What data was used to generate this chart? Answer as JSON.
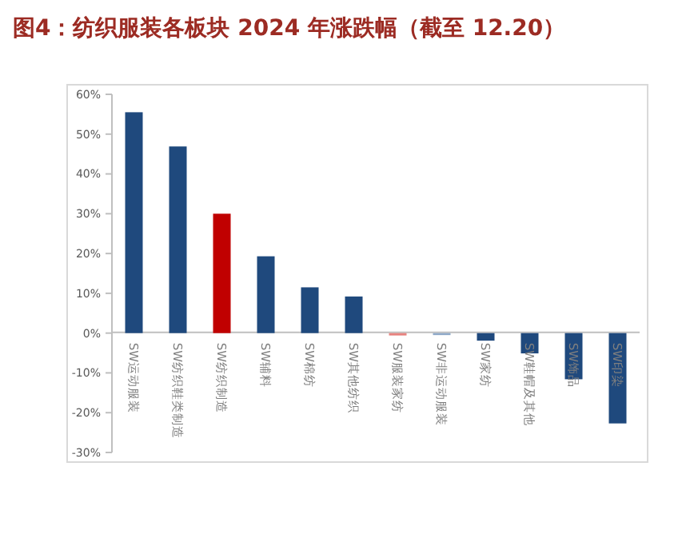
{
  "chart_data": {
    "type": "bar",
    "title": "图4：纺织服装各板块 2024 年涨跌幅（截至 12.20）",
    "categories": [
      "SW运动服装",
      "SW纺织鞋类制造",
      "SW纺织制造",
      "SW辅料",
      "SW棉纺",
      "SW其他纺织",
      "SW服装家纺",
      "SW非运动服装",
      "SW家纺",
      "SW鞋帽及其他",
      "SW饰品",
      "SW印染"
    ],
    "values": [
      55.5,
      46.9,
      30.0,
      19.3,
      11.5,
      9.2,
      -0.6,
      -0.5,
      -1.9,
      -5.1,
      -11.6,
      -22.7
    ],
    "colors": [
      "#1f497d",
      "#1f497d",
      "#c00000",
      "#1f497d",
      "#1f497d",
      "#1f497d",
      "#e6827f",
      "#8ea9c8",
      "#1f497d",
      "#1f497d",
      "#1f497d",
      "#1f497d"
    ],
    "ylim": [
      -30,
      60
    ],
    "yticks": [
      {
        "value": -30,
        "label": "-30%"
      },
      {
        "value": -20,
        "label": "-20%"
      },
      {
        "value": -10,
        "label": "-10%"
      },
      {
        "value": 0,
        "label": "0%"
      },
      {
        "value": 10,
        "label": "10%"
      },
      {
        "value": 20,
        "label": "20%"
      },
      {
        "value": 30,
        "label": "30%"
      },
      {
        "value": 40,
        "label": "40%"
      },
      {
        "value": 50,
        "label": "50%"
      },
      {
        "value": 60,
        "label": "60%"
      }
    ],
    "grid": false
  }
}
